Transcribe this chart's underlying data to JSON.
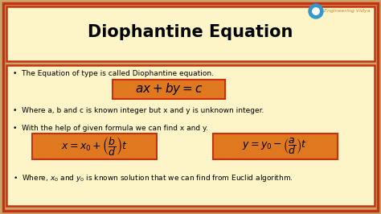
{
  "title": "Diophantine Equation",
  "bg_outer": "#c8a56a",
  "bg_inner": "#fdf5c8",
  "border_color": "#c83010",
  "box_color": "#e07820",
  "box_border": "#c83010",
  "bullet1": "The Equation of type is called Diophantine equation.",
  "formula1": "$ax + by = c$",
  "bullet2": "Where a, b and c is known integer but x and y is unknown integer.",
  "bullet3": "With the help of given formula we can find x and y.",
  "formula2": "$x = x_0 + \\left(\\dfrac{b}{d}\\right)t$",
  "formula3": "$y = y_0 - \\left(\\dfrac{a}{d}\\right)t$",
  "bullet4": "Where, $x_0$ and $y_0$ is known solution that we can find from Euclid algorithm.",
  "logo_text": "Engineering Vidya",
  "title_fontsize": 15,
  "body_fontsize": 6.5,
  "formula_fontsize": 9
}
